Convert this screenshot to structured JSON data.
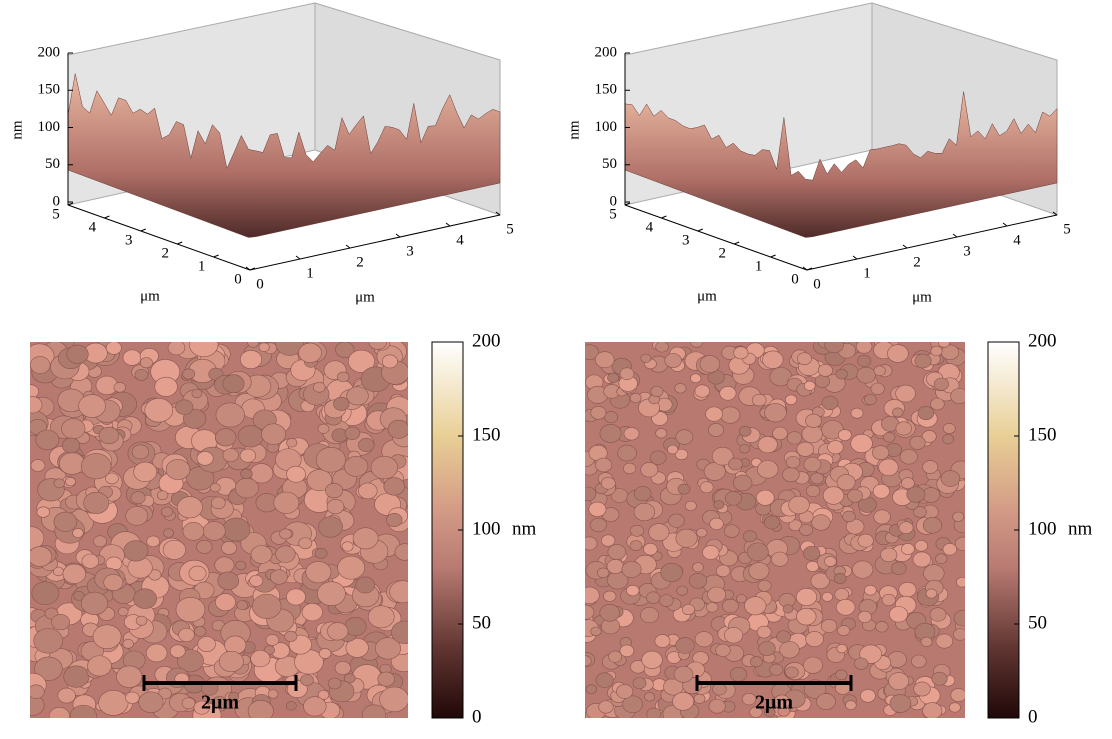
{
  "chart_data": [
    {
      "type": "surface3d",
      "zlabel": "nm",
      "xlabel": "μm",
      "ylabel": "μm",
      "zlim": [
        0,
        200
      ],
      "zticks": [
        0,
        50,
        100,
        150,
        200
      ],
      "xlim": [
        0,
        5
      ],
      "xticks": [
        0,
        1,
        2,
        3,
        4,
        5
      ],
      "ylim": [
        0,
        5
      ],
      "yticks": [
        0,
        1,
        2,
        3,
        4,
        5
      ]
    },
    {
      "type": "surface3d",
      "zlabel": "nm",
      "xlabel": "μm",
      "ylabel": "μm",
      "zlim": [
        0,
        200
      ],
      "zticks": [
        0,
        50,
        100,
        150,
        200
      ],
      "xlim": [
        0,
        5
      ],
      "xticks": [
        0,
        1,
        2,
        3,
        4,
        5
      ],
      "ylim": [
        0,
        5
      ],
      "yticks": [
        0,
        1,
        2,
        3,
        4,
        5
      ]
    },
    {
      "type": "heatmap",
      "clim": [
        0,
        200
      ],
      "cticks": [
        0,
        50,
        100,
        150,
        200
      ],
      "clabel": "nm",
      "scale_bar": "2μm"
    },
    {
      "type": "heatmap",
      "clim": [
        0,
        200
      ],
      "cticks": [
        0,
        50,
        100,
        150,
        200
      ],
      "clabel": "nm",
      "scale_bar": "2μm"
    }
  ]
}
